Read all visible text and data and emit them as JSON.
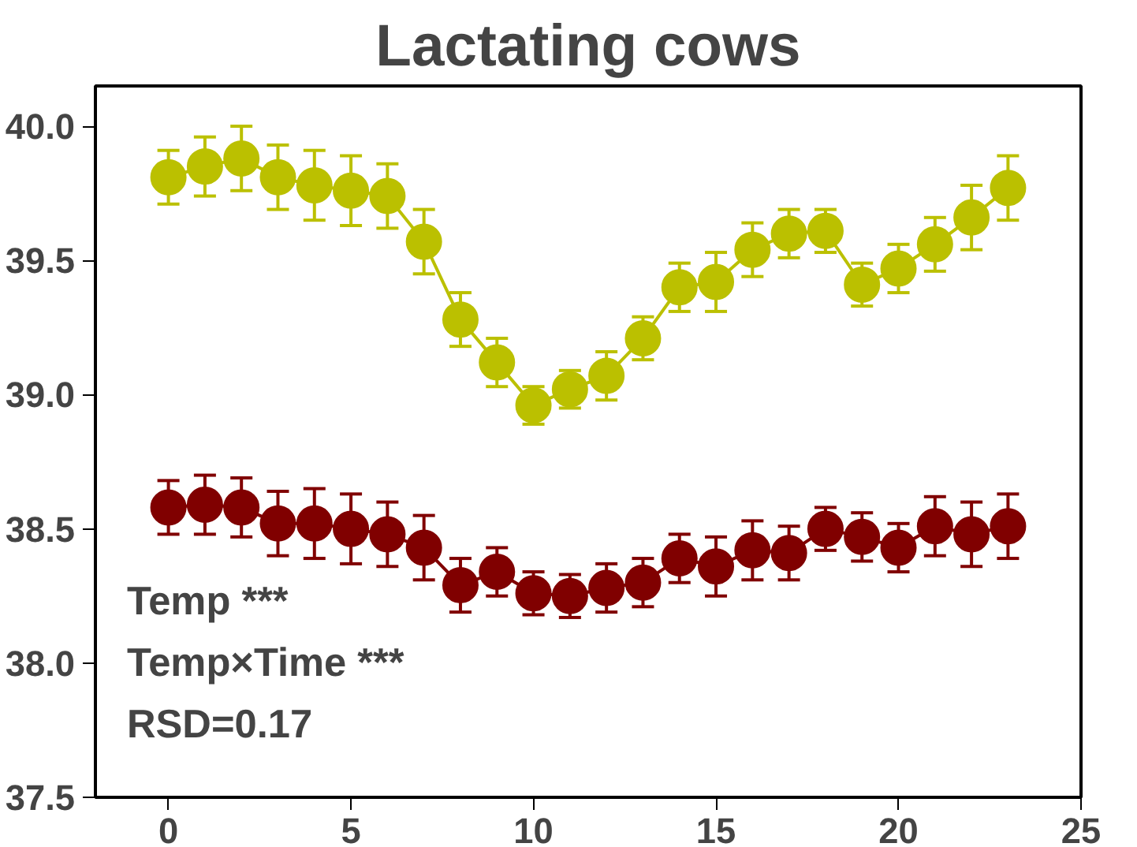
{
  "chart_data": {
    "type": "line",
    "title": "Lactating cows",
    "x": [
      0,
      1,
      2,
      3,
      4,
      5,
      6,
      7,
      8,
      9,
      10,
      11,
      12,
      13,
      14,
      15,
      16,
      17,
      18,
      19,
      20,
      21,
      22,
      23
    ],
    "series": [
      {
        "color": "#bbc000",
        "values": [
          39.81,
          39.85,
          39.88,
          39.81,
          39.78,
          39.76,
          39.74,
          39.57,
          39.28,
          39.12,
          38.96,
          39.02,
          39.07,
          39.21,
          39.4,
          39.42,
          39.54,
          39.6,
          39.61,
          39.41,
          39.47,
          39.56,
          39.66,
          39.77
        ],
        "errors": [
          0.1,
          0.11,
          0.12,
          0.12,
          0.13,
          0.13,
          0.12,
          0.12,
          0.1,
          0.09,
          0.07,
          0.07,
          0.09,
          0.08,
          0.09,
          0.11,
          0.1,
          0.09,
          0.08,
          0.08,
          0.09,
          0.1,
          0.12,
          0.12
        ]
      },
      {
        "color": "#800000",
        "values": [
          38.58,
          38.59,
          38.58,
          38.52,
          38.52,
          38.5,
          38.48,
          38.43,
          38.29,
          38.34,
          38.26,
          38.25,
          38.28,
          38.3,
          38.39,
          38.36,
          38.42,
          38.41,
          38.5,
          38.47,
          38.43,
          38.51,
          38.48,
          38.51
        ],
        "errors": [
          0.1,
          0.11,
          0.11,
          0.12,
          0.13,
          0.13,
          0.12,
          0.12,
          0.1,
          0.09,
          0.08,
          0.08,
          0.09,
          0.09,
          0.09,
          0.11,
          0.11,
          0.1,
          0.08,
          0.09,
          0.09,
          0.11,
          0.12,
          0.12
        ]
      }
    ],
    "xlim": [
      -2,
      25
    ],
    "xticks": [
      0,
      5,
      10,
      15,
      20,
      25
    ],
    "ylim": [
      37.5,
      40.15
    ],
    "yticks": [
      {
        "value": 37.5,
        "label": "37.5"
      },
      {
        "value": 38,
        "label": "38.0"
      },
      {
        "value": 38.5,
        "label": "38.5"
      },
      {
        "value": 39,
        "label": "39.0"
      },
      {
        "value": 39.5,
        "label": "39.5"
      },
      {
        "value": 40,
        "label": "40.0"
      }
    ],
    "grid": false,
    "marker": "circle",
    "line_style": "solid",
    "annotations": [
      "Temp ***",
      "Temp×Time ***",
      "RSD=0.17"
    ]
  }
}
